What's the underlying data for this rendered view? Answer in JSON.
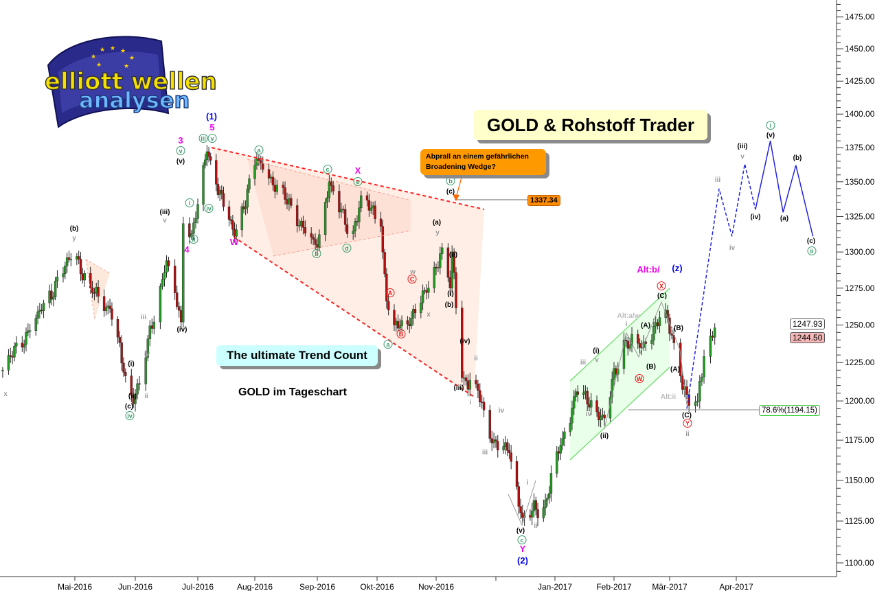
{
  "title": "GOLD & Rohstoff Trader",
  "subtitle_box": "The ultimate Trend Count",
  "chart_caption": "GOLD im Tageschart",
  "callout": "Abprall an einem gefährlichen Broadening Wedge?",
  "logo": {
    "line1": "elliott wellen",
    "line2": "analysen"
  },
  "chart_data": {
    "type": "candlestick",
    "y_scale": "log",
    "ylim": [
      1090,
      1490
    ],
    "y_ticks": [
      "1100.00",
      "1125.00",
      "1150.00",
      "1175.00",
      "1200.00",
      "1225.00",
      "1250.00",
      "1275.00",
      "1300.00",
      "1325.00",
      "1350.00",
      "1375.00",
      "1400.00",
      "1425.00",
      "1450.00",
      "1475.00"
    ],
    "x_ticks": [
      {
        "label": "Mai-2016",
        "date": "2016-05-01"
      },
      {
        "label": "Jun-2016",
        "date": "2016-06-01"
      },
      {
        "label": "Jul-2016",
        "date": "2016-07-01"
      },
      {
        "label": "Aug-2016",
        "date": "2016-08-01"
      },
      {
        "label": "Sep-2016",
        "date": "2016-09-01"
      },
      {
        "label": "Okt-2016",
        "date": "2016-10-01"
      },
      {
        "label": "Nov-2016",
        "date": "2016-11-01"
      },
      {
        "label": "",
        "date": "2016-12-01"
      },
      {
        "label": "Jan-2017",
        "date": "2017-01-01"
      },
      {
        "label": "Feb-2017",
        "date": "2017-02-01"
      },
      {
        "label": "Mär-2017",
        "date": "2017-03-01"
      },
      {
        "label": "Apr-2017",
        "date": "2017-04-01"
      }
    ],
    "price_path": [
      [
        "2016-03-25",
        1220
      ],
      [
        "2016-04-10",
        1252
      ],
      [
        "2016-05-01",
        1301
      ],
      [
        "2016-05-08",
        1275
      ],
      [
        "2016-05-19",
        1261
      ],
      [
        "2016-05-29",
        1202
      ],
      [
        "2016-06-03",
        1211
      ],
      [
        "2016-06-16",
        1294
      ],
      [
        "2016-06-23",
        1252
      ],
      [
        "2016-06-24",
        1320
      ],
      [
        "2016-06-28",
        1313
      ],
      [
        "2016-07-06",
        1372
      ],
      [
        "2016-07-21",
        1311
      ],
      [
        "2016-08-02",
        1367
      ],
      [
        "2016-09-01",
        1303
      ],
      [
        "2016-09-07",
        1350
      ],
      [
        "2016-09-18",
        1308
      ],
      [
        "2016-09-23",
        1340
      ],
      [
        "2016-10-03",
        1318
      ],
      [
        "2016-10-06",
        1266
      ],
      [
        "2016-10-10",
        1250
      ],
      [
        "2016-10-16",
        1249
      ],
      [
        "2016-10-28",
        1275
      ],
      [
        "2016-11-04",
        1303
      ],
      [
        "2016-11-08",
        1275
      ],
      [
        "2016-11-09",
        1300
      ],
      [
        "2016-11-14",
        1215
      ],
      [
        "2016-11-21",
        1211
      ],
      [
        "2016-11-28",
        1176
      ],
      [
        "2016-12-08",
        1167
      ],
      [
        "2016-12-15",
        1127
      ],
      [
        "2016-12-26",
        1133
      ],
      [
        "2017-01-05",
        1176
      ],
      [
        "2017-01-12",
        1206
      ],
      [
        "2017-01-27",
        1189
      ],
      [
        "2017-02-06",
        1240
      ],
      [
        "2017-02-15",
        1235
      ],
      [
        "2017-02-26",
        1260
      ],
      [
        "2017-03-03",
        1238
      ],
      [
        "2017-03-10",
        1197
      ],
      [
        "2017-03-14",
        1200
      ],
      [
        "2017-03-17",
        1229
      ],
      [
        "2017-03-22",
        1248
      ]
    ],
    "projection": [
      [
        "2017-03-09",
        1195
      ],
      [
        "2017-03-24",
        1345
      ],
      [
        "2017-03-30",
        1311
      ],
      [
        "2017-04-05",
        1363
      ],
      [
        "2017-04-10",
        1330
      ],
      [
        "2017-04-17",
        1380
      ],
      [
        "2017-04-23",
        1328
      ],
      [
        "2017-04-29",
        1362
      ],
      [
        "2017-05-07",
        1311
      ]
    ],
    "levels": [
      {
        "label": "1337.34",
        "price": 1337.34
      },
      {
        "label": "78.6%(1194.15)",
        "price": 1194.15
      }
    ],
    "last_prices": [
      "1247.93",
      "1244.50"
    ],
    "colors": {
      "up": "#1f9b1f",
      "down": "#b01010",
      "wedge": "#ff2020",
      "channel": "#66dd66",
      "projection": "#2222dd"
    },
    "wave_labels": [
      {
        "t": "x",
        "c": "gray"
      },
      {
        "t": "(b)",
        "c": "black"
      },
      {
        "t": "y",
        "c": "gray"
      },
      {
        "t": "(i)",
        "c": "black"
      },
      {
        "t": "(ii)",
        "c": "black"
      },
      {
        "t": "ii",
        "c": "gray"
      },
      {
        "t": "(c)",
        "c": "black"
      },
      {
        "t": "iv",
        "c": "green"
      },
      {
        "t": "iii",
        "c": "gray"
      },
      {
        "t": "iv",
        "c": "gray"
      },
      {
        "t": "(iii)",
        "c": "black"
      },
      {
        "t": "v",
        "c": "gray"
      },
      {
        "t": "(iv)",
        "c": "black"
      },
      {
        "t": "(v)",
        "c": "black"
      },
      {
        "t": "v",
        "c": "green"
      },
      {
        "t": "3",
        "c": "magenta"
      },
      {
        "t": "4",
        "c": "magenta"
      },
      {
        "t": "i",
        "c": "green"
      },
      {
        "t": "ii",
        "c": "green"
      },
      {
        "t": "iv",
        "c": "green"
      },
      {
        "t": "iii",
        "c": "green"
      },
      {
        "t": "v",
        "c": "green"
      },
      {
        "t": "5",
        "c": "magenta"
      },
      {
        "t": "(1)",
        "c": "blue"
      },
      {
        "t": "W",
        "c": "magenta"
      },
      {
        "t": "a",
        "c": "green"
      },
      {
        "t": "c",
        "c": "green"
      },
      {
        "t": "X",
        "c": "magenta"
      },
      {
        "t": "e",
        "c": "green"
      },
      {
        "t": "b",
        "c": "green"
      },
      {
        "t": "d",
        "c": "green"
      },
      {
        "t": "a",
        "c": "green"
      },
      {
        "t": "A",
        "c": "red"
      },
      {
        "t": "B",
        "c": "red"
      },
      {
        "t": "C",
        "c": "red"
      },
      {
        "t": "w",
        "c": "gray"
      },
      {
        "t": "x",
        "c": "gray"
      },
      {
        "t": "(a)",
        "c": "black"
      },
      {
        "t": "y",
        "c": "gray"
      },
      {
        "t": "b",
        "c": "green"
      },
      {
        "t": "(c)",
        "c": "black"
      },
      {
        "t": "(ii)",
        "c": "black"
      },
      {
        "t": "(i)",
        "c": "black"
      },
      {
        "t": "(b)",
        "c": "black"
      },
      {
        "t": "(iv)",
        "c": "black"
      },
      {
        "t": "ii",
        "c": "gray"
      },
      {
        "t": "(iii)",
        "c": "black"
      },
      {
        "t": "i",
        "c": "gray"
      },
      {
        "t": "iv",
        "c": "gray"
      },
      {
        "t": "iii",
        "c": "gray"
      },
      {
        "t": "i",
        "c": "gray"
      },
      {
        "t": "ii",
        "c": "gray"
      },
      {
        "t": "(v)",
        "c": "black"
      },
      {
        "t": "c",
        "c": "green"
      },
      {
        "t": "Y",
        "c": "magenta"
      },
      {
        "t": "(2)",
        "c": "blue"
      },
      {
        "t": "iii",
        "c": "gray"
      },
      {
        "t": "v",
        "c": "gray"
      },
      {
        "t": "(i)",
        "c": "black"
      },
      {
        "t": "iv",
        "c": "gray"
      },
      {
        "t": "(ii)",
        "c": "black"
      },
      {
        "t": "Alt:a/w",
        "c": "lightgray"
      },
      {
        "t": "i",
        "c": "gray"
      },
      {
        "t": "(A)",
        "c": "black"
      },
      {
        "t": "(B)",
        "c": "black"
      },
      {
        "t": "W",
        "c": "red"
      },
      {
        "t": "(C)",
        "c": "black"
      },
      {
        "t": "X",
        "c": "red"
      },
      {
        "t": "Alt:b/",
        "c": "magenta"
      },
      {
        "t": "(z)",
        "c": "blue"
      },
      {
        "t": "(B)",
        "c": "black"
      },
      {
        "t": "(A)",
        "c": "black"
      },
      {
        "t": "Alt:ii",
        "c": "lightgray"
      },
      {
        "t": "(C)",
        "c": "black"
      },
      {
        "t": "Y",
        "c": "red"
      },
      {
        "t": "ii",
        "c": "gray"
      },
      {
        "t": "iii",
        "c": "gray"
      },
      {
        "t": "iv",
        "c": "gray"
      },
      {
        "t": "(iii)",
        "c": "black"
      },
      {
        "t": "v",
        "c": "gray"
      },
      {
        "t": "(iv)",
        "c": "black"
      },
      {
        "t": "(v)",
        "c": "black"
      },
      {
        "t": "i",
        "c": "green"
      },
      {
        "t": "(a)",
        "c": "black"
      },
      {
        "t": "(b)",
        "c": "black"
      },
      {
        "t": "(c)",
        "c": "black"
      },
      {
        "t": "ii",
        "c": "green"
      }
    ]
  }
}
